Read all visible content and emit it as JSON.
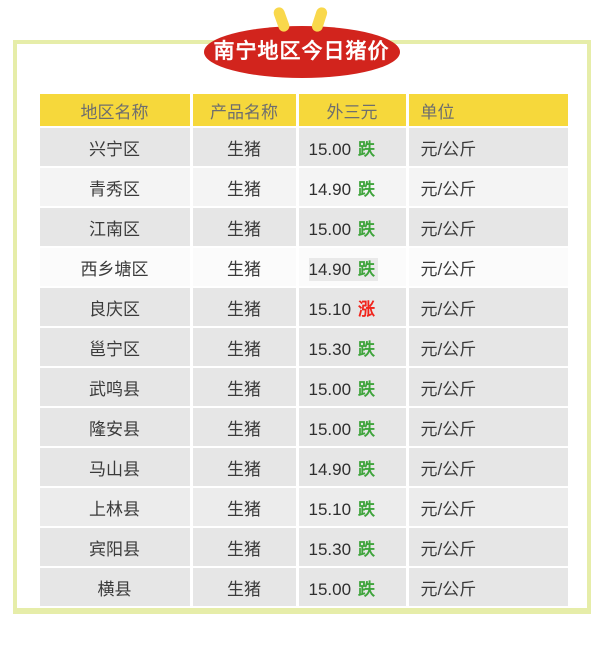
{
  "header": {
    "title": "南宁地区今日猪价"
  },
  "colors": {
    "badge_red": "#d2241d",
    "sprout_yellow": "#f9d84c",
    "border_green": "#e6eda9",
    "header_yellow": "#f6d83b",
    "header_text": "#6e6e6e",
    "row_text": "#3a3a3a",
    "price_text": "#2e2e2e",
    "down_green": "#3fa43c",
    "up_red": "#f1241b",
    "highlight": "#e9e9e9"
  },
  "table": {
    "columns": [
      "地区名称",
      "产品名称",
      "外三元",
      "单位"
    ],
    "rows": [
      {
        "region": "兴宁区",
        "product": "生猪",
        "price": "15.00",
        "trend": "跌",
        "direction": "down",
        "unit": "元/公斤",
        "bg": "#e6e6e6",
        "highlight": false
      },
      {
        "region": "青秀区",
        "product": "生猪",
        "price": "14.90",
        "trend": "跌",
        "direction": "down",
        "unit": "元/公斤",
        "bg": "#f4f4f4",
        "highlight": false
      },
      {
        "region": "江南区",
        "product": "生猪",
        "price": "15.00",
        "trend": "跌",
        "direction": "down",
        "unit": "元/公斤",
        "bg": "#e6e6e6",
        "highlight": false
      },
      {
        "region": "西乡塘区",
        "product": "生猪",
        "price": "14.90",
        "trend": "跌",
        "direction": "down",
        "unit": "元/公斤",
        "bg": "#fbfbfb",
        "highlight": true
      },
      {
        "region": "良庆区",
        "product": "生猪",
        "price": "15.10",
        "trend": "涨",
        "direction": "up",
        "unit": "元/公斤",
        "bg": "#e6e6e6",
        "highlight": false
      },
      {
        "region": "邕宁区",
        "product": "生猪",
        "price": "15.30",
        "trend": "跌",
        "direction": "down",
        "unit": "元/公斤",
        "bg": "#e6e6e6",
        "highlight": false
      },
      {
        "region": "武鸣县",
        "product": "生猪",
        "price": "15.00",
        "trend": "跌",
        "direction": "down",
        "unit": "元/公斤",
        "bg": "#e6e6e6",
        "highlight": false
      },
      {
        "region": "隆安县",
        "product": "生猪",
        "price": "15.00",
        "trend": "跌",
        "direction": "down",
        "unit": "元/公斤",
        "bg": "#e6e6e6",
        "highlight": false
      },
      {
        "region": "马山县",
        "product": "生猪",
        "price": "14.90",
        "trend": "跌",
        "direction": "down",
        "unit": "元/公斤",
        "bg": "#e6e6e6",
        "highlight": false
      },
      {
        "region": "上林县",
        "product": "生猪",
        "price": "15.10",
        "trend": "跌",
        "direction": "down",
        "unit": "元/公斤",
        "bg": "#ececec",
        "highlight": false
      },
      {
        "region": "宾阳县",
        "product": "生猪",
        "price": "15.30",
        "trend": "跌",
        "direction": "down",
        "unit": "元/公斤",
        "bg": "#e6e6e6",
        "highlight": false
      },
      {
        "region": "横县",
        "product": "生猪",
        "price": "15.00",
        "trend": "跌",
        "direction": "down",
        "unit": "元/公斤",
        "bg": "#e6e6e6",
        "highlight": false
      }
    ]
  },
  "chart_data": {
    "type": "table",
    "title": "南宁地区今日猪价",
    "columns": [
      "地区名称",
      "产品名称",
      "外三元",
      "单位"
    ],
    "rows": [
      [
        "兴宁区",
        "生猪",
        "15.00 跌",
        "元/公斤"
      ],
      [
        "青秀区",
        "生猪",
        "14.90 跌",
        "元/公斤"
      ],
      [
        "江南区",
        "生猪",
        "15.00 跌",
        "元/公斤"
      ],
      [
        "西乡塘区",
        "生猪",
        "14.90 跌",
        "元/公斤"
      ],
      [
        "良庆区",
        "生猪",
        "15.10 涨",
        "元/公斤"
      ],
      [
        "邕宁区",
        "生猪",
        "15.30 跌",
        "元/公斤"
      ],
      [
        "武鸣县",
        "生猪",
        "15.00 跌",
        "元/公斤"
      ],
      [
        "隆安县",
        "生猪",
        "15.00 跌",
        "元/公斤"
      ],
      [
        "马山县",
        "生猪",
        "14.90 跌",
        "元/公斤"
      ],
      [
        "上林县",
        "生猪",
        "15.10 跌",
        "元/公斤"
      ],
      [
        "宾阳县",
        "生猪",
        "15.30 跌",
        "元/公斤"
      ],
      [
        "横县",
        "生猪",
        "15.00 跌",
        "元/公斤"
      ]
    ],
    "notes": "价格单位 元/公斤; 跌=green(down), 涨=red(up); 西乡塘区行价格带灰色选中高亮"
  }
}
